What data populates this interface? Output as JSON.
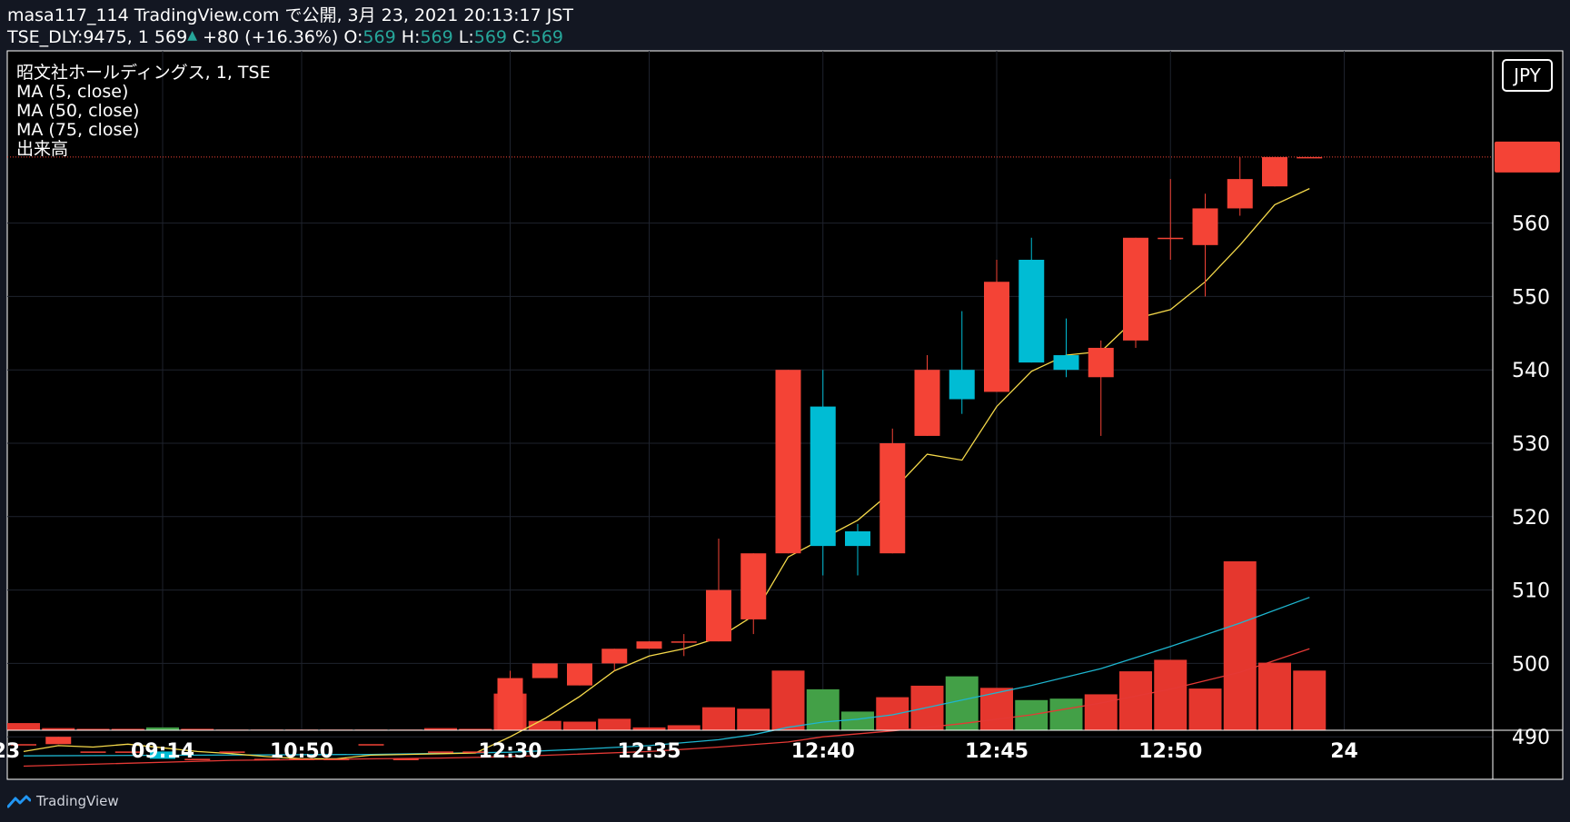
{
  "header": {
    "line1": "masa117_114 TradingView.com で公開, 3月 23, 2021 20:13:17 JST",
    "symbol": "TSE_DLY:9475, 1",
    "price": "569",
    "change": "+80 (+16.36%)",
    "o_label": "O:",
    "o_val": "569",
    "h_label": "H:",
    "h_val": "569",
    "l_label": "L:",
    "l_val": "569",
    "c_label": "C:",
    "c_val": "569"
  },
  "footer": {
    "brand": "TradingView"
  },
  "colors": {
    "up": "#f44336",
    "down": "#00bcd4",
    "vol_up": "#e5372e",
    "vol_down": "#43a047",
    "ma5": "#f5d94a",
    "ma50": "#e53935",
    "ma75": "#1eb6d0"
  },
  "chart_data": {
    "type": "candlestick",
    "legend": [
      "昭文社ホールディングス, 1, TSE",
      "MA (5, close)",
      "MA (50, close)",
      "MA (75, close)",
      "出来高"
    ],
    "currency": "JPY",
    "yticks": [
      490,
      500,
      510,
      520,
      530,
      540,
      550,
      560
    ],
    "ylim": [
      481.5,
      578
    ],
    "last_price": 569,
    "xticks": [
      {
        "label": "23",
        "index": -0.5
      },
      {
        "label": "09:14",
        "index": 4
      },
      {
        "label": "10:50",
        "index": 8
      },
      {
        "label": "12:30",
        "index": 14
      },
      {
        "label": "12:35",
        "index": 18
      },
      {
        "label": "12:40",
        "index": 23
      },
      {
        "label": "12:45",
        "index": 28
      },
      {
        "label": "12:50",
        "index": 33
      },
      {
        "label": "24",
        "index": 38
      }
    ],
    "candles": [
      {
        "o": 489,
        "h": 489,
        "l": 489,
        "c": 489,
        "v": 1
      },
      {
        "o": 489,
        "h": 490,
        "l": 489,
        "c": 490,
        "v": 0.3
      },
      {
        "o": 488,
        "h": 488,
        "l": 488,
        "c": 488,
        "v": 0.2
      },
      {
        "o": 488,
        "h": 488,
        "l": 488,
        "c": 488,
        "v": 0.2
      },
      {
        "o": 488,
        "h": 488,
        "l": 487,
        "c": 487,
        "v": 0.4
      },
      {
        "o": 487,
        "h": 487,
        "l": 487,
        "c": 487,
        "v": 0.2
      },
      {
        "o": 488,
        "h": 488,
        "l": 488,
        "c": 488,
        "v": 0.1
      },
      {
        "o": 487,
        "h": 487,
        "l": 487,
        "c": 487,
        "v": 0.1
      },
      {
        "o": 487,
        "h": 487,
        "l": 487,
        "c": 487,
        "v": 0.1
      },
      {
        "o": 487,
        "h": 487,
        "l": 487,
        "c": 487,
        "v": 0.1
      },
      {
        "o": 489,
        "h": 489,
        "l": 489,
        "c": 489,
        "v": 0.1
      },
      {
        "o": 487,
        "h": 487,
        "l": 487,
        "c": 487,
        "v": 0.1
      },
      {
        "o": 488,
        "h": 488,
        "l": 488,
        "c": 488,
        "v": 0.3
      },
      {
        "o": 488,
        "h": 488,
        "l": 488,
        "c": 488,
        "v": 0.2
      },
      {
        "o": 491,
        "h": 499,
        "l": 491,
        "c": 498,
        "v": 5.1
      },
      {
        "o": 498,
        "h": 500,
        "l": 498,
        "c": 500,
        "v": 1.3
      },
      {
        "o": 497,
        "h": 500,
        "l": 497,
        "c": 500,
        "v": 1.2
      },
      {
        "o": 500,
        "h": 502,
        "l": 499,
        "c": 502,
        "v": 1.6
      },
      {
        "o": 502,
        "h": 503,
        "l": 502,
        "c": 503,
        "v": 0.4
      },
      {
        "o": 503,
        "h": 504,
        "l": 501,
        "c": 503,
        "v": 0.7
      },
      {
        "o": 503,
        "h": 517,
        "l": 503,
        "c": 510,
        "v": 3.2
      },
      {
        "o": 506,
        "h": 515,
        "l": 504,
        "c": 515,
        "v": 3.0
      },
      {
        "o": 515,
        "h": 540,
        "l": 515,
        "c": 540,
        "v": 8.3
      },
      {
        "o": 535,
        "h": 540,
        "l": 512,
        "c": 516,
        "v": 5.7
      },
      {
        "o": 518,
        "h": 519,
        "l": 512,
        "c": 516,
        "v": 2.6
      },
      {
        "o": 515,
        "h": 532,
        "l": 515,
        "c": 530,
        "v": 4.6
      },
      {
        "o": 531,
        "h": 542,
        "l": 531,
        "c": 540,
        "v": 6.2
      },
      {
        "o": 540,
        "h": 548,
        "l": 534,
        "c": 536,
        "v": 7.5
      },
      {
        "o": 537,
        "h": 555,
        "l": 537,
        "c": 552,
        "v": 5.9
      },
      {
        "o": 555,
        "h": 558,
        "l": 541,
        "c": 541,
        "v": 4.2
      },
      {
        "o": 542,
        "h": 547,
        "l": 539,
        "c": 540,
        "v": 4.4
      },
      {
        "o": 539,
        "h": 544,
        "l": 531,
        "c": 543,
        "v": 5.0
      },
      {
        "o": 544,
        "h": 558,
        "l": 543,
        "c": 558,
        "v": 8.2
      },
      {
        "o": 558,
        "h": 566,
        "l": 555,
        "c": 558,
        "v": 9.8
      },
      {
        "o": 557,
        "h": 564,
        "l": 550,
        "c": 562,
        "v": 5.8
      },
      {
        "o": 562,
        "h": 569,
        "l": 561,
        "c": 566,
        "v": 23.5
      },
      {
        "o": 565,
        "h": 569,
        "l": 565,
        "c": 569,
        "v": 9.4
      },
      {
        "o": 569,
        "h": 569,
        "l": 569,
        "c": 569,
        "v": 8.3
      }
    ],
    "ma5": [
      {
        "i": 0,
        "v": 488
      },
      {
        "i": 1,
        "v": 488.8
      },
      {
        "i": 2,
        "v": 488.6
      },
      {
        "i": 3,
        "v": 489
      },
      {
        "i": 4,
        "v": 488.5
      },
      {
        "i": 5,
        "v": 488
      },
      {
        "i": 6,
        "v": 487.7
      },
      {
        "i": 7,
        "v": 487.3
      },
      {
        "i": 8,
        "v": 487
      },
      {
        "i": 9,
        "v": 487
      },
      {
        "i": 10,
        "v": 487.5
      },
      {
        "i": 11,
        "v": 487.6
      },
      {
        "i": 12,
        "v": 487.7
      },
      {
        "i": 13,
        "v": 487.8
      },
      {
        "i": 14,
        "v": 490
      },
      {
        "i": 15,
        "v": 492.5
      },
      {
        "i": 16,
        "v": 495.5
      },
      {
        "i": 17,
        "v": 499
      },
      {
        "i": 18,
        "v": 501
      },
      {
        "i": 19,
        "v": 502
      },
      {
        "i": 20,
        "v": 503.5
      },
      {
        "i": 21,
        "v": 506.5
      },
      {
        "i": 22,
        "v": 514.5
      },
      {
        "i": 23,
        "v": 517
      },
      {
        "i": 24,
        "v": 519.5
      },
      {
        "i": 25,
        "v": 523.5
      },
      {
        "i": 26,
        "v": 528.5
      },
      {
        "i": 27,
        "v": 527.7
      },
      {
        "i": 28,
        "v": 535
      },
      {
        "i": 29,
        "v": 539.8
      },
      {
        "i": 30,
        "v": 542
      },
      {
        "i": 31,
        "v": 542.5
      },
      {
        "i": 32,
        "v": 547
      },
      {
        "i": 33,
        "v": 548.2
      },
      {
        "i": 34,
        "v": 552
      },
      {
        "i": 35,
        "v": 557
      },
      {
        "i": 36,
        "v": 562.5
      },
      {
        "i": 37,
        "v": 564.7
      }
    ],
    "ma50": [
      {
        "i": 0,
        "v": 486
      },
      {
        "i": 6,
        "v": 486.8
      },
      {
        "i": 12,
        "v": 487.1
      },
      {
        "i": 14,
        "v": 487.3
      },
      {
        "i": 18,
        "v": 488
      },
      {
        "i": 20,
        "v": 488.6
      },
      {
        "i": 22,
        "v": 489.3
      },
      {
        "i": 23,
        "v": 490
      },
      {
        "i": 25,
        "v": 490.8
      },
      {
        "i": 27,
        "v": 491.8
      },
      {
        "i": 29,
        "v": 493
      },
      {
        "i": 31,
        "v": 494.6
      },
      {
        "i": 33,
        "v": 496.5
      },
      {
        "i": 35,
        "v": 498.8
      },
      {
        "i": 37,
        "v": 502
      }
    ],
    "ma75": [
      {
        "i": 0,
        "v": 487.4
      },
      {
        "i": 10,
        "v": 487.6
      },
      {
        "i": 14,
        "v": 487.9
      },
      {
        "i": 16,
        "v": 488.3
      },
      {
        "i": 18,
        "v": 488.8
      },
      {
        "i": 20,
        "v": 489.6
      },
      {
        "i": 21,
        "v": 490.3
      },
      {
        "i": 22,
        "v": 491.3
      },
      {
        "i": 23,
        "v": 492
      },
      {
        "i": 24,
        "v": 492.4
      },
      {
        "i": 25,
        "v": 493
      },
      {
        "i": 27,
        "v": 495
      },
      {
        "i": 29,
        "v": 497
      },
      {
        "i": 31,
        "v": 499.3
      },
      {
        "i": 33,
        "v": 502.3
      },
      {
        "i": 35,
        "v": 505.5
      },
      {
        "i": 37,
        "v": 509
      }
    ]
  }
}
